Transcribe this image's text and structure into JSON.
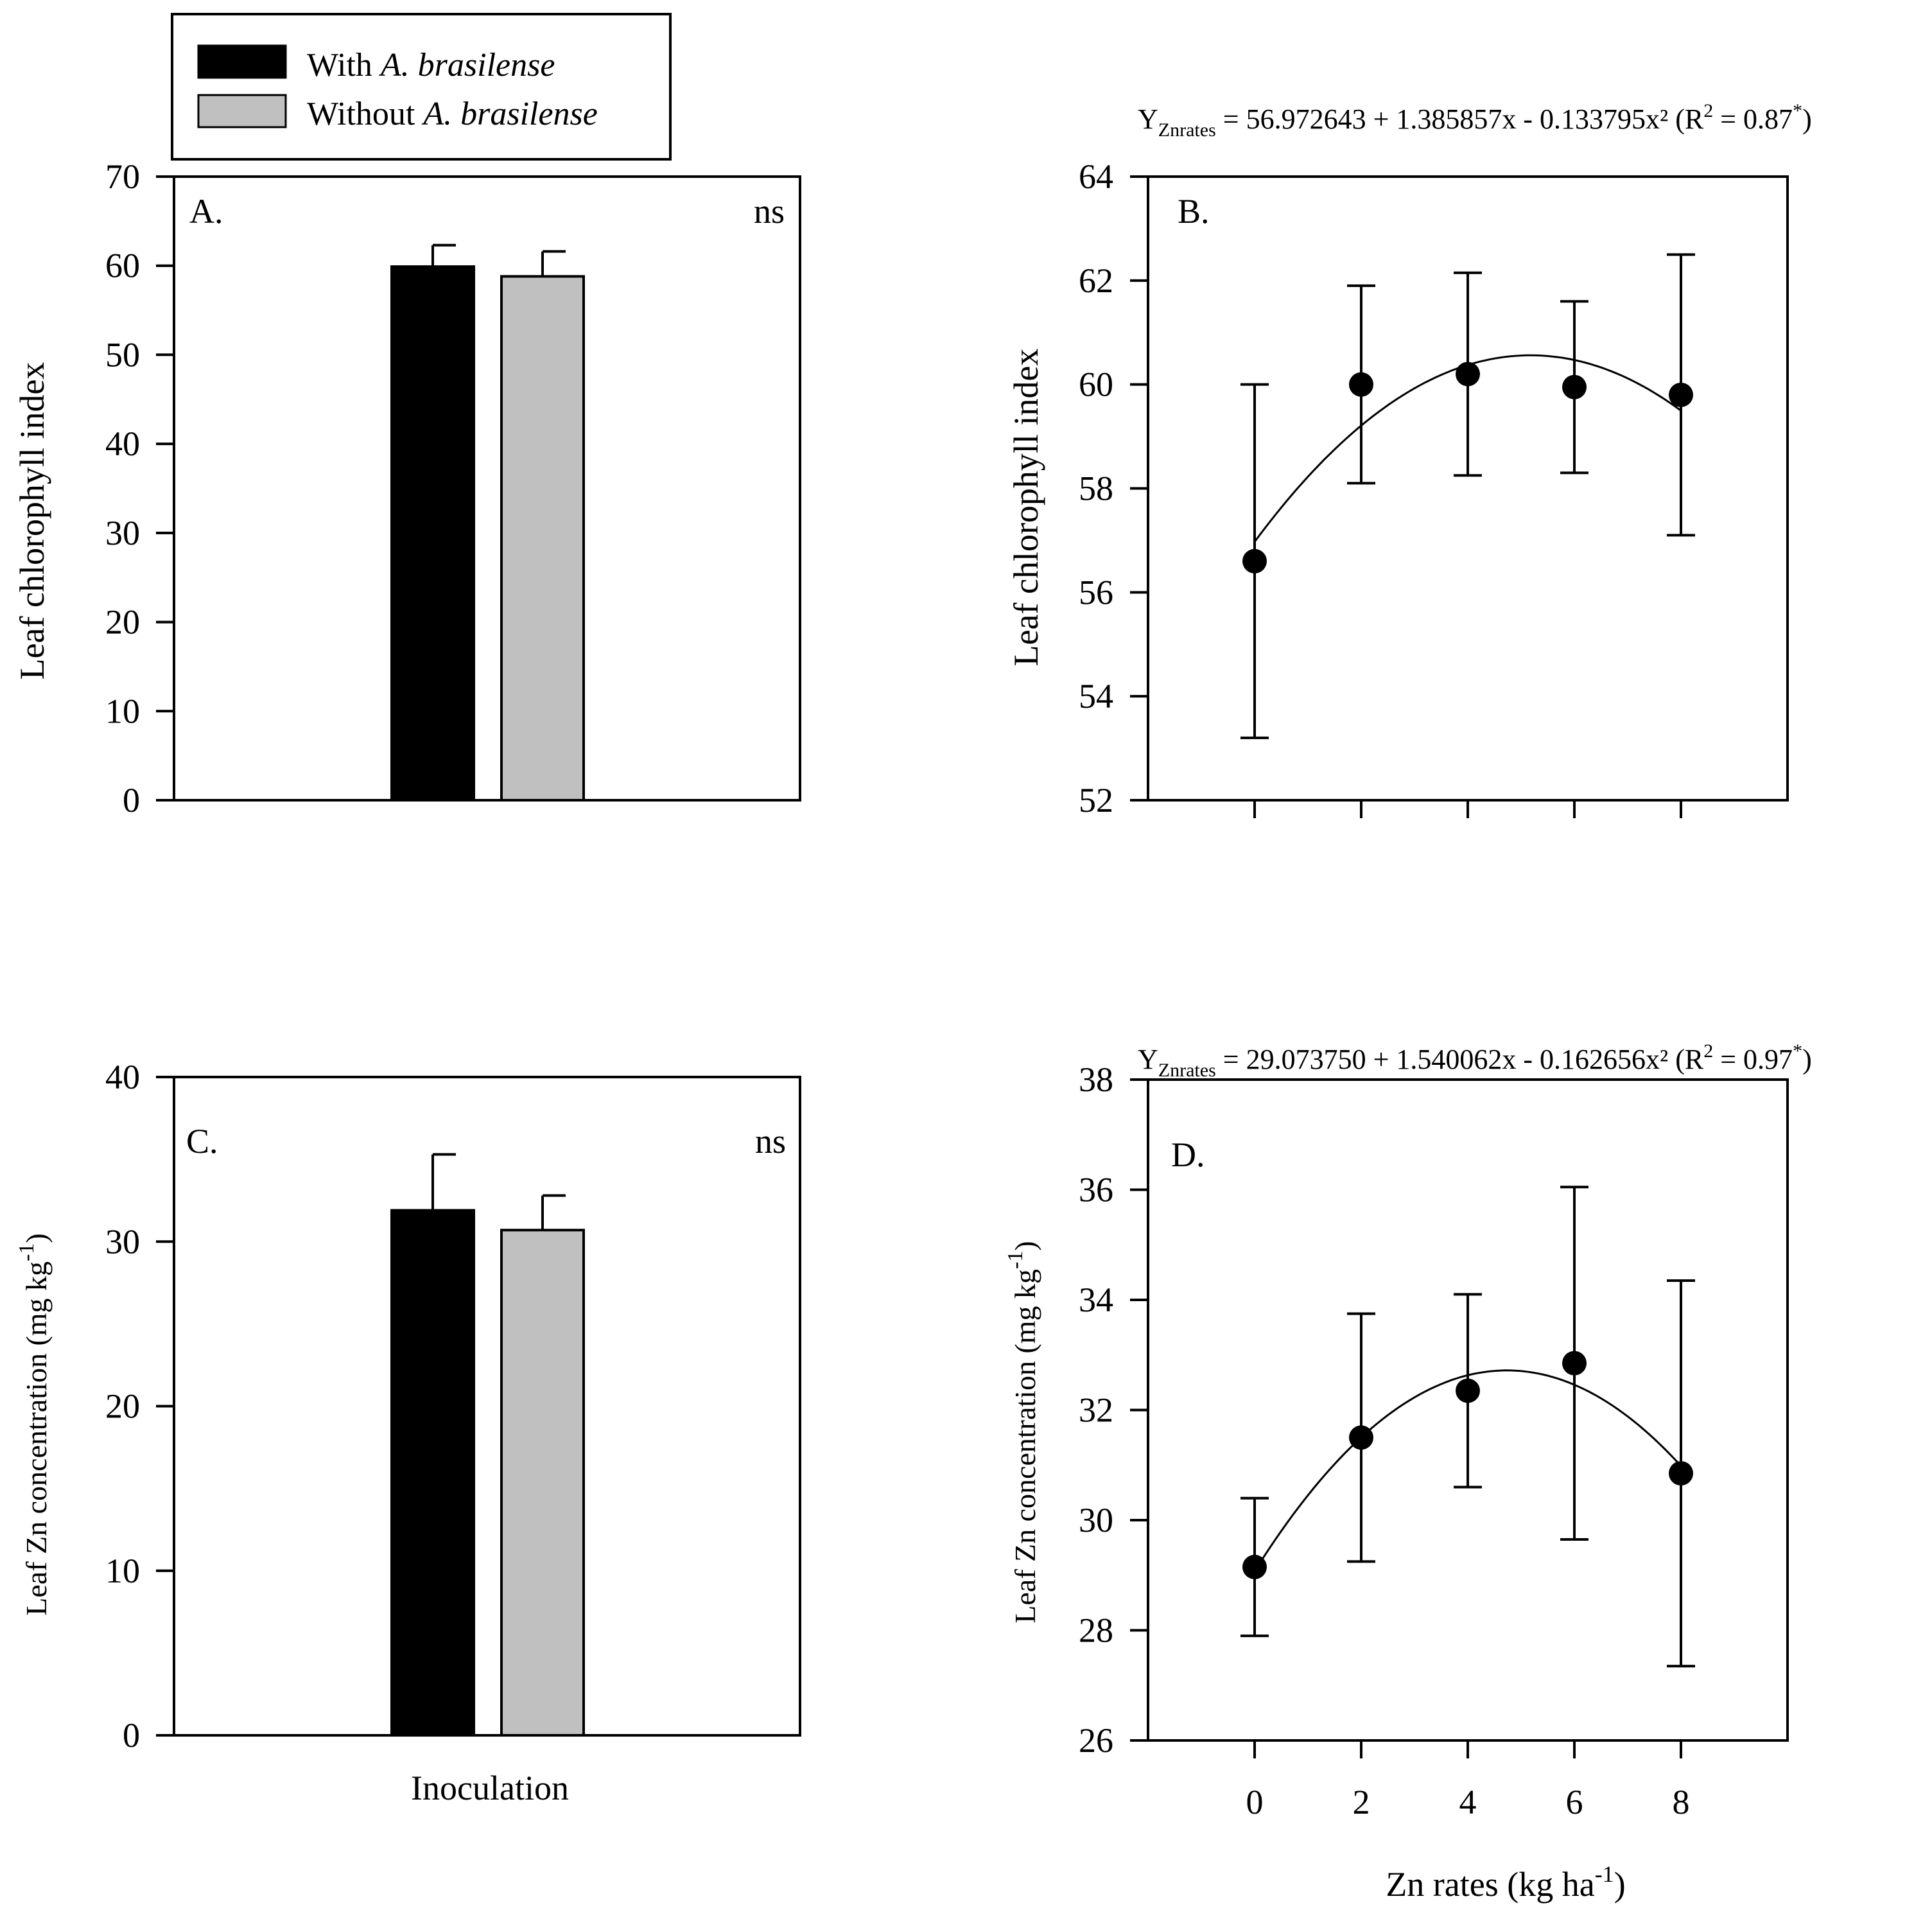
{
  "legend": {
    "items": [
      {
        "prefix": "With ",
        "italic": "A.  brasilense",
        "color": "#000000"
      },
      {
        "prefix": "Without ",
        "italic": "A. brasilense",
        "color": "#c0c0c0"
      }
    ]
  },
  "shared": {
    "bar_xlabel": "Inoculation",
    "scatter_xlabel_main": "Zn rates (kg ha",
    "scatter_xlabel_sup": "-1",
    "scatter_xlabel_end": ")",
    "ylabel_chlorophyll": "Leaf chlorophyll index",
    "ylabel_zn_main": "Leaf Zn concentration (mg kg",
    "ylabel_zn_sup": "-1",
    "ylabel_zn_end": ")"
  },
  "chart_data": [
    {
      "panel": "A.",
      "type": "bar",
      "note": "ns",
      "ylabel": "Leaf chlorophyll index",
      "xlabel": "",
      "ylim": [
        0,
        70
      ],
      "yticks": [
        "0",
        "10",
        "20",
        "30",
        "40",
        "50",
        "60",
        "70"
      ],
      "series": [
        {
          "name": "With A. brasilense",
          "value": 59.9,
          "error": 2.4
        },
        {
          "name": "Without A. brasilense",
          "value": 58.8,
          "error": 2.8
        }
      ]
    },
    {
      "panel": "B.",
      "type": "scatter",
      "ylabel": "Leaf chlorophyll index",
      "xlim": [
        -2,
        10
      ],
      "ylim": [
        52,
        64
      ],
      "yticks": [
        "52",
        "54",
        "56",
        "58",
        "60",
        "62",
        "64"
      ],
      "x": [
        0,
        2,
        4,
        6,
        8
      ],
      "values": [
        56.6,
        60.0,
        60.2,
        59.95,
        59.8
      ],
      "errors": [
        3.4,
        1.9,
        1.95,
        1.65,
        2.7
      ],
      "fit": {
        "a": 56.972643,
        "b": 1.385857,
        "c": -0.133795
      },
      "equation": {
        "y": "Y",
        "sub": "Znrates",
        "rhs": " = 56.972643 + 1.385857x - 0.133795x² (R",
        "sup2": "2",
        "r2": " = 0.87",
        "star": "*",
        "close": ")"
      }
    },
    {
      "panel": "C.",
      "type": "bar",
      "note": "ns",
      "ylabel": "Leaf Zn concentration (mg kg-1)",
      "xlabel": "Inoculation",
      "ylim": [
        0,
        40
      ],
      "yticks": [
        "0",
        "10",
        "20",
        "30",
        "40"
      ],
      "series": [
        {
          "name": "With A. brasilense",
          "value": 31.9,
          "error": 3.4
        },
        {
          "name": "Without A. brasilense",
          "value": 30.7,
          "error": 2.1
        }
      ]
    },
    {
      "panel": "D.",
      "type": "scatter",
      "ylabel": "Leaf Zn concentration (mg kg-1)",
      "xlabel": "Zn rates (kg ha-1)",
      "xlim": [
        -2,
        10
      ],
      "ylim": [
        26,
        38
      ],
      "xticks": [
        "0",
        "2",
        "4",
        "6",
        "8"
      ],
      "yticks": [
        "26",
        "28",
        "30",
        "32",
        "34",
        "36",
        "38"
      ],
      "x": [
        0,
        2,
        4,
        6,
        8
      ],
      "values": [
        29.15,
        31.5,
        32.35,
        32.85,
        30.85
      ],
      "errors": [
        1.25,
        2.25,
        1.75,
        3.2,
        3.5
      ],
      "fit": {
        "a": 29.07375,
        "b": 1.540062,
        "c": -0.162656
      },
      "equation": {
        "y": "Y",
        "sub": "Znrates",
        "rhs": " = 29.073750 + 1.540062x - 0.162656x² (R",
        "sup2": "2",
        "r2": " = 0.97",
        "star": "*",
        "close": ")"
      }
    }
  ]
}
